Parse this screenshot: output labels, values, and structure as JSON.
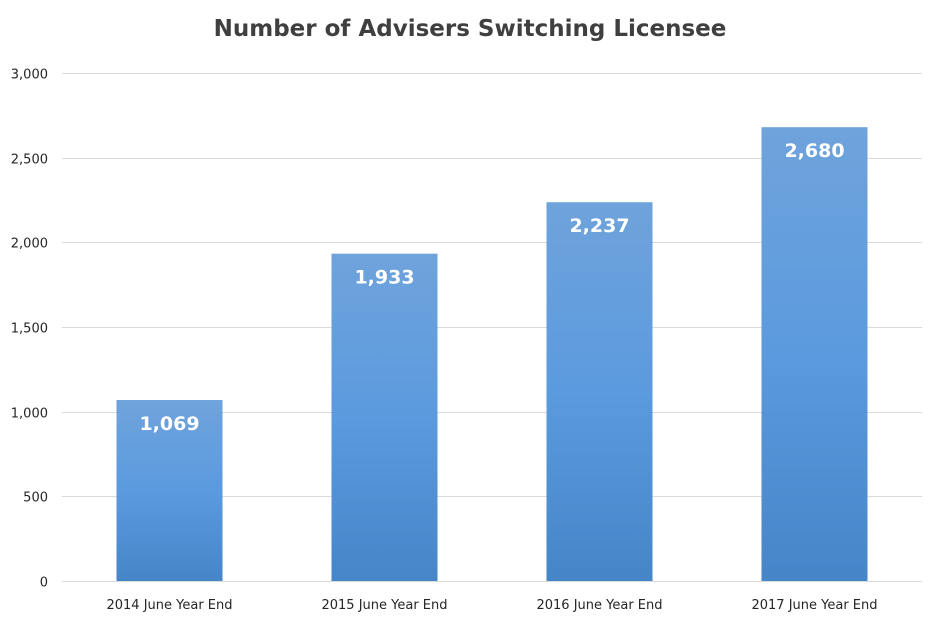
{
  "chart_data": {
    "type": "bar",
    "title": "Number of Advisers Switching Licensee",
    "xlabel": "",
    "ylabel": "",
    "categories": [
      "2014 June Year End",
      "2015 June Year End",
      "2016 June Year End",
      "2017 June Year End"
    ],
    "values": [
      1069,
      1933,
      2237,
      2680
    ],
    "data_labels": [
      "1,069",
      "1,933",
      "2,237",
      "2,680"
    ],
    "ylim": [
      0,
      3000
    ],
    "yticks": [
      0,
      500,
      1000,
      1500,
      2000,
      2500,
      3000
    ],
    "ytick_labels": [
      "0",
      "500",
      "1,000",
      "1,500",
      "2,000",
      "2,500",
      "3,000"
    ],
    "grid": true,
    "legend": "none",
    "colors": {
      "bar_top": "#6fa3dc",
      "bar_mid": "#5b9ade",
      "bar_bottom": "#4585c8",
      "gridline": "#d9d9d9",
      "title": "#3f3f3f"
    }
  }
}
